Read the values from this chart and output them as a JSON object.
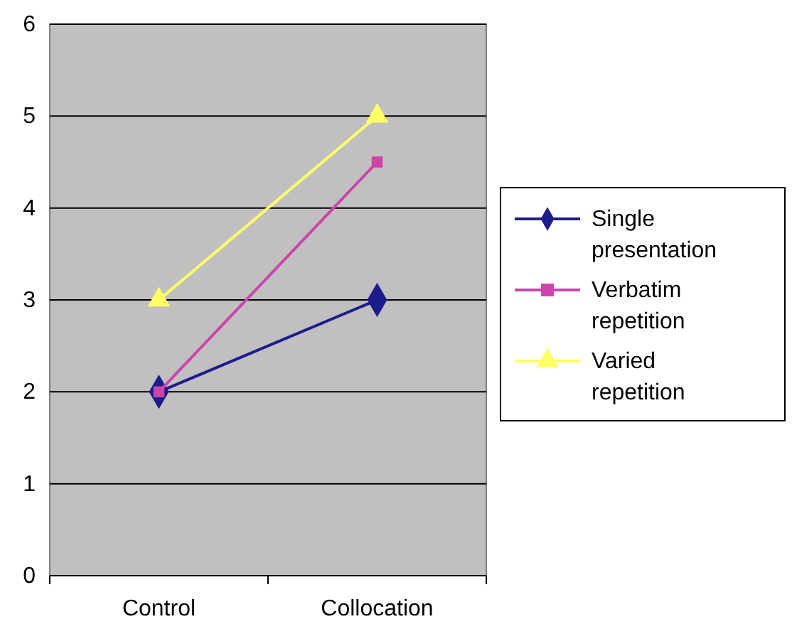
{
  "chart_data": {
    "type": "line",
    "categories": [
      "Control",
      "Collocation"
    ],
    "series": [
      {
        "name": "Single presentation",
        "color": "#1c1c8c",
        "values": [
          2,
          3
        ],
        "marker": "diamond"
      },
      {
        "name": "Verbatim repetition",
        "color": "#cc44aa",
        "values": [
          2,
          4.5
        ],
        "marker": "square"
      },
      {
        "name": "Varied repetition",
        "color": "#ffff66",
        "values": [
          3,
          5
        ],
        "marker": "triangle"
      }
    ],
    "ylim": [
      0,
      6
    ],
    "yticks": [
      0,
      1,
      2,
      3,
      4,
      5,
      6
    ],
    "grid": "y",
    "legend": "right"
  }
}
